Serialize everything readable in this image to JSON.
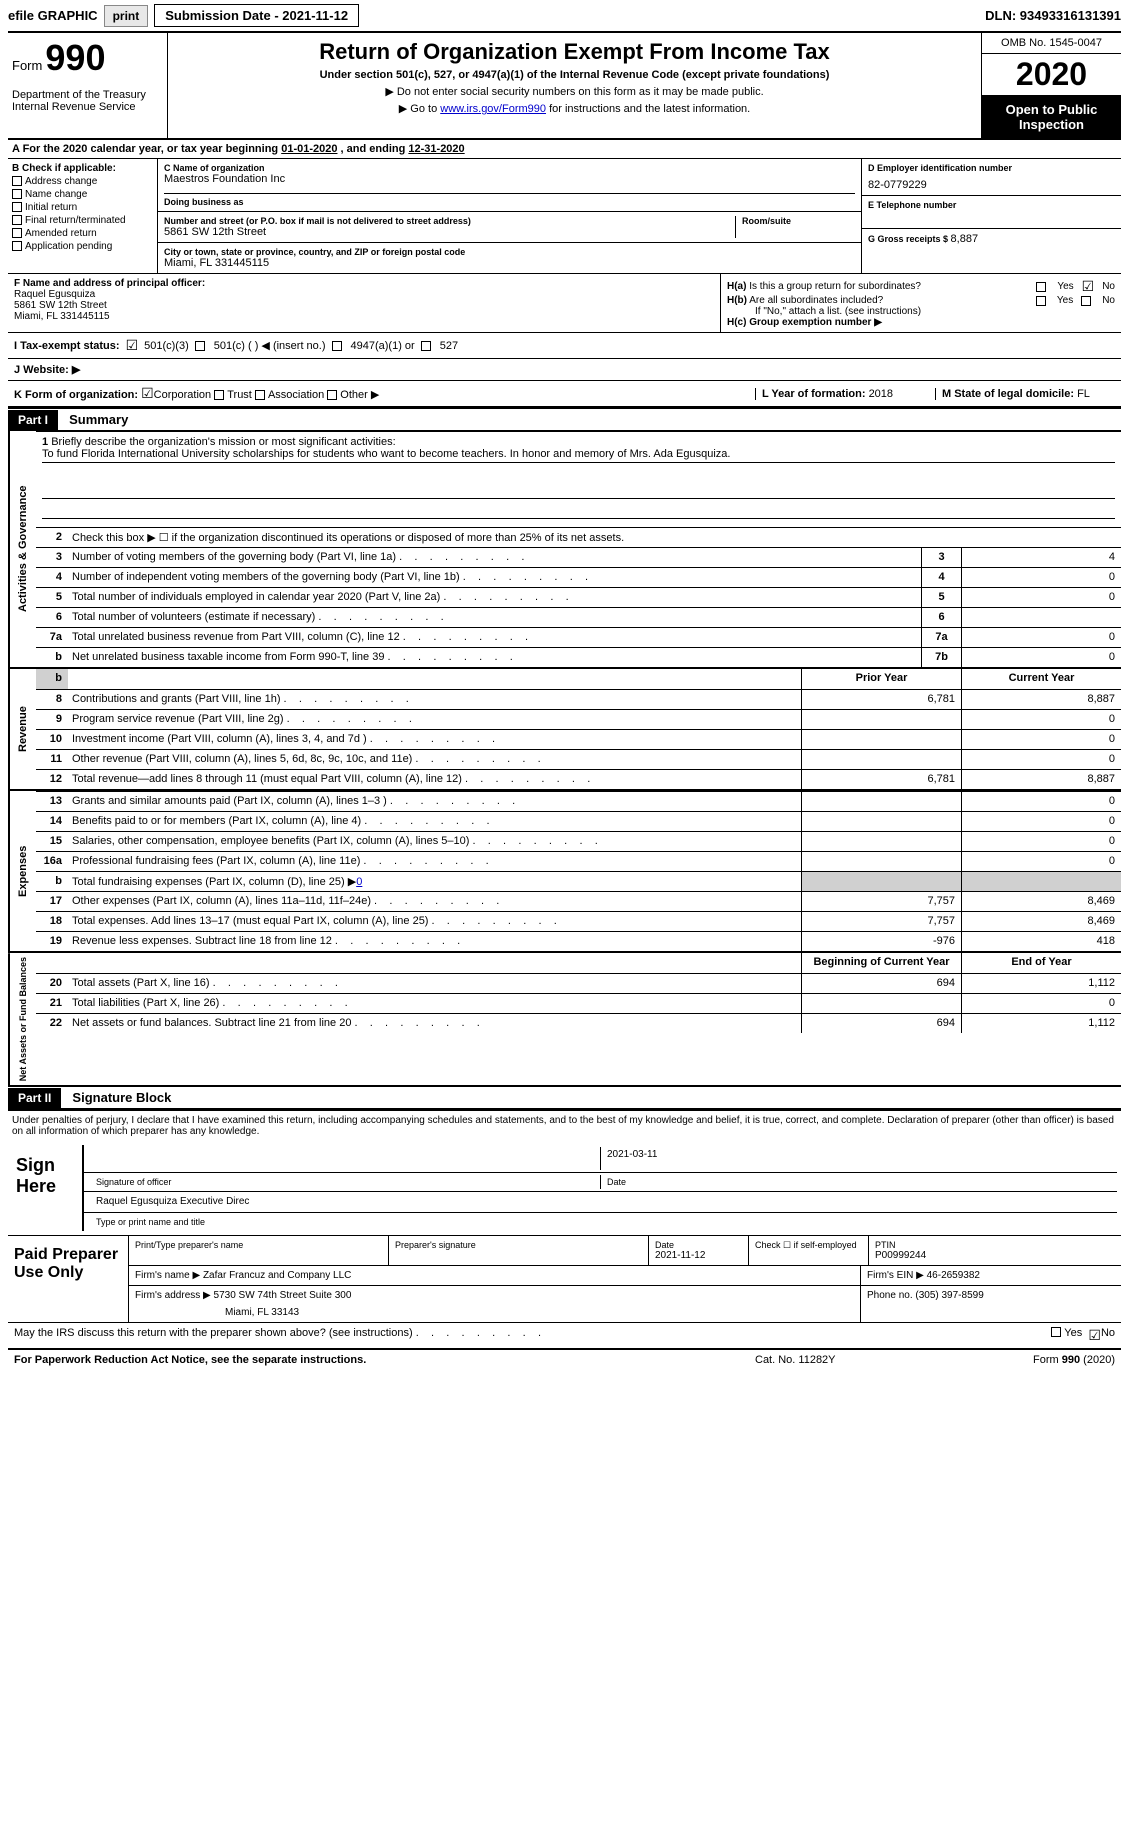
{
  "topbar": {
    "efile_label": "efile GRAPHIC",
    "print_btn": "print",
    "submission_label": "Submission Date - 2021-11-12",
    "dln_label": "DLN: 93493316131391"
  },
  "header": {
    "form_word": "Form",
    "form_number": "990",
    "dept": "Department of the Treasury\nInternal Revenue Service",
    "title": "Return of Organization Exempt From Income Tax",
    "subtitle": "Under section 501(c), 527, or 4947(a)(1) of the Internal Revenue Code (except private foundations)",
    "instr1": "▶ Do not enter social security numbers on this form as it may be made public.",
    "instr2_pre": "▶ Go to ",
    "instr2_link": "www.irs.gov/Form990",
    "instr2_post": " for instructions and the latest information.",
    "omb": "OMB No. 1545-0047",
    "year": "2020",
    "inspection": "Open to Public Inspection"
  },
  "period": {
    "label_a": "A For the 2020 calendar year, or tax year beginning ",
    "begin": "01-01-2020",
    "mid": "  , and ending ",
    "end": "12-31-2020"
  },
  "section_b": {
    "heading": "B Check if applicable:",
    "items": [
      "Address change",
      "Name change",
      "Initial return",
      "Final return/terminated",
      "Amended return",
      "Application pending"
    ]
  },
  "section_c": {
    "label": "C Name of organization",
    "name": "Maestros Foundation Inc",
    "dba_label": "Doing business as",
    "addr_label": "Number and street (or P.O. box if mail is not delivered to street address)",
    "room_label": "Room/suite",
    "street": "5861 SW 12th Street",
    "city_label": "City or town, state or province, country, and ZIP or foreign postal code",
    "city": "Miami, FL  331445115"
  },
  "section_d": {
    "label": "D Employer identification number",
    "ein": "82-0779229"
  },
  "section_e": {
    "label": "E Telephone number",
    "phone": ""
  },
  "section_g": {
    "label": "G Gross receipts $ ",
    "amount": "8,887"
  },
  "section_f": {
    "label": "F  Name and address of principal officer:",
    "name": "Raquel Egusquiza",
    "addr1": "5861 SW 12th Street",
    "addr2": "Miami, FL  331445115"
  },
  "section_h": {
    "ha_label": "H(a)  Is this a group return for subordinates?",
    "hb_label": "H(b)  Are all subordinates included?",
    "hb_note": "If \"No,\" attach a list. (see instructions)",
    "hc_label": "H(c)  Group exemption number ▶",
    "yes": "Yes",
    "no": "No"
  },
  "row_i": {
    "label": "I    Tax-exempt status:",
    "opts": [
      "501(c)(3)",
      "501(c) (  ) ◀ (insert no.)",
      "4947(a)(1) or",
      "527"
    ]
  },
  "row_j": {
    "label": "J    Website: ▶"
  },
  "row_k": {
    "label": "K Form of organization:",
    "opts": [
      "Corporation",
      "Trust",
      "Association",
      "Other ▶"
    ],
    "l_label": "L Year of formation: ",
    "l_val": "2018",
    "m_label": "M State of legal domicile: ",
    "m_val": "FL"
  },
  "part1": {
    "hdr": "Part I",
    "title": "Summary"
  },
  "mission": {
    "num": "1",
    "label": "Briefly describe the organization's mission or most significant activities:",
    "text": "To fund Florida International University scholarships for students who want to become teachers. In honor and memory of Mrs. Ada Egusquiza."
  },
  "governance": {
    "side": "Activities & Governance",
    "line2": {
      "num": "2",
      "text": "Check this box ▶ ☐  if the organization discontinued its operations or disposed of more than 25% of its net assets."
    },
    "lines": [
      {
        "num": "3",
        "text": "Number of voting members of the governing body (Part VI, line 1a)",
        "col": "3",
        "val": "4"
      },
      {
        "num": "4",
        "text": "Number of independent voting members of the governing body (Part VI, line 1b)",
        "col": "4",
        "val": "0"
      },
      {
        "num": "5",
        "text": "Total number of individuals employed in calendar year 2020 (Part V, line 2a)",
        "col": "5",
        "val": "0"
      },
      {
        "num": "6",
        "text": "Total number of volunteers (estimate if necessary)",
        "col": "6",
        "val": ""
      },
      {
        "num": "7a",
        "text": "Total unrelated business revenue from Part VIII, column (C), line 12",
        "col": "7a",
        "val": "0"
      },
      {
        "num": "b",
        "text": "Net unrelated business taxable income from Form 990-T, line 39",
        "col": "7b",
        "val": "0"
      }
    ]
  },
  "cols": {
    "prior": "Prior Year",
    "current": "Current Year",
    "boc": "Beginning of Current Year",
    "eoy": "End of Year"
  },
  "revenue": {
    "side": "Revenue",
    "lines": [
      {
        "num": "8",
        "text": "Contributions and grants (Part VIII, line 1h)",
        "prior": "6,781",
        "curr": "8,887"
      },
      {
        "num": "9",
        "text": "Program service revenue (Part VIII, line 2g)",
        "prior": "",
        "curr": "0"
      },
      {
        "num": "10",
        "text": "Investment income (Part VIII, column (A), lines 3, 4, and 7d )",
        "prior": "",
        "curr": "0"
      },
      {
        "num": "11",
        "text": "Other revenue (Part VIII, column (A), lines 5, 6d, 8c, 9c, 10c, and 11e)",
        "prior": "",
        "curr": "0"
      },
      {
        "num": "12",
        "text": "Total revenue—add lines 8 through 11 (must equal Part VIII, column (A), line 12)",
        "prior": "6,781",
        "curr": "8,887"
      }
    ]
  },
  "expenses": {
    "side": "Expenses",
    "lines": [
      {
        "num": "13",
        "text": "Grants and similar amounts paid (Part IX, column (A), lines 1–3 )",
        "prior": "",
        "curr": "0"
      },
      {
        "num": "14",
        "text": "Benefits paid to or for members (Part IX, column (A), line 4)",
        "prior": "",
        "curr": "0"
      },
      {
        "num": "15",
        "text": "Salaries, other compensation, employee benefits (Part IX, column (A), lines 5–10)",
        "prior": "",
        "curr": "0"
      },
      {
        "num": "16a",
        "text": "Professional fundraising fees (Part IX, column (A), line 11e)",
        "prior": "",
        "curr": "0"
      }
    ],
    "line_b": {
      "num": "b",
      "text": "Total fundraising expenses (Part IX, column (D), line 25) ▶",
      "val": "0"
    },
    "lines2": [
      {
        "num": "17",
        "text": "Other expenses (Part IX, column (A), lines 11a–11d, 11f–24e)",
        "prior": "7,757",
        "curr": "8,469"
      },
      {
        "num": "18",
        "text": "Total expenses. Add lines 13–17 (must equal Part IX, column (A), line 25)",
        "prior": "7,757",
        "curr": "8,469"
      },
      {
        "num": "19",
        "text": "Revenue less expenses. Subtract line 18 from line 12",
        "prior": "-976",
        "curr": "418"
      }
    ]
  },
  "netassets": {
    "side": "Net Assets or Fund Balances",
    "lines": [
      {
        "num": "20",
        "text": "Total assets (Part X, line 16)",
        "prior": "694",
        "curr": "1,112"
      },
      {
        "num": "21",
        "text": "Total liabilities (Part X, line 26)",
        "prior": "",
        "curr": "0"
      },
      {
        "num": "22",
        "text": "Net assets or fund balances. Subtract line 21 from line 20",
        "prior": "694",
        "curr": "1,112"
      }
    ]
  },
  "part2": {
    "hdr": "Part II",
    "title": "Signature Block"
  },
  "sig": {
    "decl": "Under penalties of perjury, I declare that I have examined this return, including accompanying schedules and statements, and to the best of my knowledge and belief, it is true, correct, and complete. Declaration of preparer (other than officer) is based on all information of which preparer has any knowledge.",
    "sign_here": "Sign Here",
    "sig_officer": "Signature of officer",
    "date": "Date",
    "date_val": "2021-03-11",
    "name_title": "Raquel Egusquiza  Executive Direc",
    "type_label": "Type or print name and title"
  },
  "preparer": {
    "label": "Paid Preparer Use Only",
    "h1": "Print/Type preparer's name",
    "h2": "Preparer's signature",
    "h3": "Date",
    "date": "2021-11-12",
    "h4": "Check ☐ if self-employed",
    "h5": "PTIN",
    "ptin": "P00999244",
    "firm_label": "Firm's name    ▶ ",
    "firm": "Zafar Francuz and Company LLC",
    "ein_label": "Firm's EIN ▶ ",
    "ein": "46-2659382",
    "addr_label": "Firm's address ▶ ",
    "addr": "5730 SW 74th Street Suite 300",
    "addr2": "Miami, FL  33143",
    "phone_label": "Phone no. ",
    "phone": "(305) 397-8599"
  },
  "footer": {
    "discuss": "May the IRS discuss this return with the preparer shown above? (see instructions)",
    "yes": "Yes",
    "no": "No",
    "pra": "For Paperwork Reduction Act Notice, see the separate instructions.",
    "cat": "Cat. No. 11282Y",
    "form": "Form 990 (2020)"
  }
}
